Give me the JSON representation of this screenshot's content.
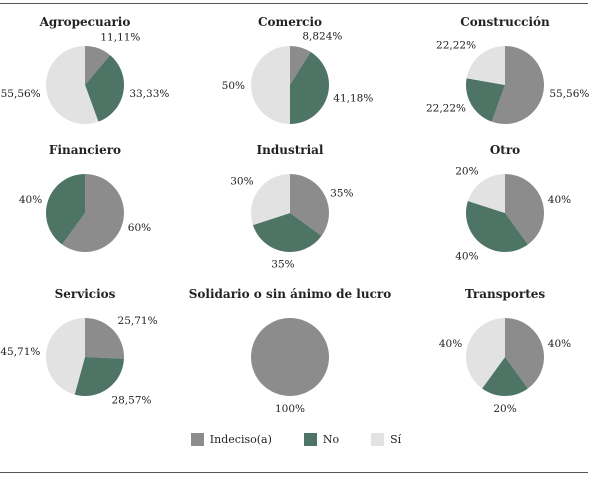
{
  "colors": {
    "indeciso": "#8c8c8c",
    "no": "#4e7466",
    "si": "#e2e2e2"
  },
  "legend": [
    {
      "label": "Indeciso(a)",
      "color": "#8c8c8c"
    },
    {
      "label": "No",
      "color": "#4e7466"
    },
    {
      "label": "Sí",
      "color": "#e2e2e2"
    }
  ],
  "chart_data": [
    {
      "type": "pie",
      "title": "Agropecuario",
      "slices": [
        {
          "category": "Indeciso(a)",
          "value": 11.11,
          "label": "11,11%"
        },
        {
          "category": "No",
          "value": 33.33,
          "label": "33,33%"
        },
        {
          "category": "Sí",
          "value": 55.56,
          "label": "55,56%"
        }
      ]
    },
    {
      "type": "pie",
      "title": "Comercio",
      "slices": [
        {
          "category": "Indeciso(a)",
          "value": 8.824,
          "label": "8,824%"
        },
        {
          "category": "No",
          "value": 41.18,
          "label": "41,18%"
        },
        {
          "category": "Sí",
          "value": 50,
          "label": "50%"
        }
      ]
    },
    {
      "type": "pie",
      "title": "Construcción",
      "slices": [
        {
          "category": "Indeciso(a)",
          "value": 55.56,
          "label": "55,56%"
        },
        {
          "category": "No",
          "value": 22.22,
          "label": "22,22%"
        },
        {
          "category": "Sí",
          "value": 22.22,
          "label": "22,22%"
        }
      ]
    },
    {
      "type": "pie",
      "title": "Financiero",
      "slices": [
        {
          "category": "Indeciso(a)",
          "value": 60,
          "label": "60%"
        },
        {
          "category": "No",
          "value": 40,
          "label": "40%"
        }
      ]
    },
    {
      "type": "pie",
      "title": "Industrial",
      "slices": [
        {
          "category": "Indeciso(a)",
          "value": 35,
          "label": "35%"
        },
        {
          "category": "No",
          "value": 35,
          "label": "35%"
        },
        {
          "category": "Sí",
          "value": 30,
          "label": "30%"
        }
      ]
    },
    {
      "type": "pie",
      "title": "Otro",
      "slices": [
        {
          "category": "Indeciso(a)",
          "value": 40,
          "label": "40%"
        },
        {
          "category": "No",
          "value": 40,
          "label": "40%"
        },
        {
          "category": "Sí",
          "value": 20,
          "label": "20%"
        }
      ]
    },
    {
      "type": "pie",
      "title": "Servicios",
      "slices": [
        {
          "category": "Indeciso(a)",
          "value": 25.71,
          "label": "25,71%"
        },
        {
          "category": "No",
          "value": 28.57,
          "label": "28,57%"
        },
        {
          "category": "Sí",
          "value": 45.71,
          "label": "45,71%"
        }
      ]
    },
    {
      "type": "pie",
      "title": "Solidario o sin ánimo de lucro",
      "slices": [
        {
          "category": "Indeciso(a)",
          "value": 100,
          "label": "100%"
        }
      ]
    },
    {
      "type": "pie",
      "title": "Transportes",
      "slices": [
        {
          "category": "Indeciso(a)",
          "value": 40,
          "label": "40%"
        },
        {
          "category": "No",
          "value": 20,
          "label": "20%"
        },
        {
          "category": "Sí",
          "value": 40,
          "label": "40%"
        }
      ]
    }
  ]
}
